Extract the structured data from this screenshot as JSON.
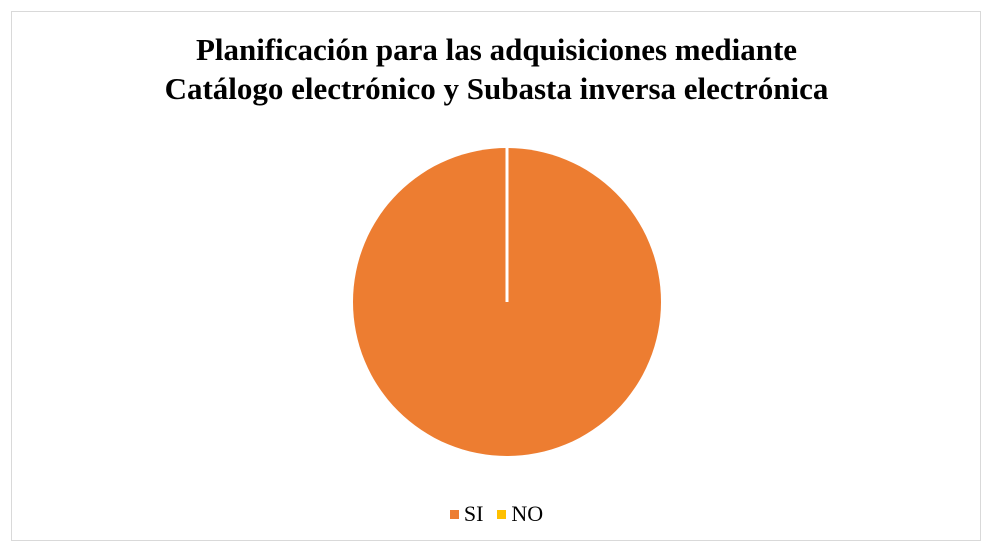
{
  "chart_data": {
    "type": "pie",
    "title_lines": [
      "Planificación para las adquisiciones mediante",
      "Catálogo electrónico y Subasta inversa electrónica"
    ],
    "categories": [
      "SI",
      "NO"
    ],
    "values": [
      100,
      0
    ],
    "colors": [
      "#ED7D31",
      "#FFC000"
    ],
    "slice_border_color": "#ffffff",
    "legend_position": "bottom"
  }
}
